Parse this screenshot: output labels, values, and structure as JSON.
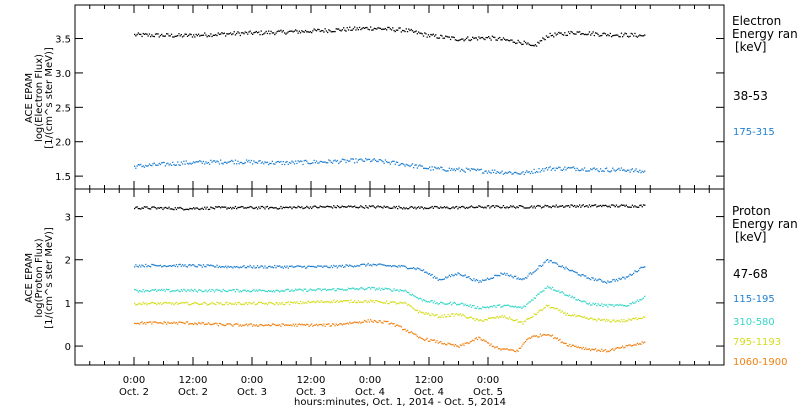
{
  "chart_data": [
    {
      "type": "scatter",
      "ylabel_lines": [
        "ACE EPAM",
        "log(Electron Flux)",
        "[1/(cm^s ster MeV)]"
      ],
      "ylim": [
        1.4,
        3.9
      ],
      "yticks": [
        1.5,
        2.0,
        2.5,
        3.0,
        3.5
      ],
      "ytick_labels": [
        "1.5",
        "2.0",
        "2.5",
        "3.0",
        "3.5"
      ],
      "legend": {
        "title_lines": [
          "Electron",
          "Energy ran",
          "[keV]"
        ]
      },
      "series": [
        {
          "name": "38-53",
          "color": "#000000",
          "points": [
            [
              0,
              3.56
            ],
            [
              10,
              3.55
            ],
            [
              20,
              3.58
            ],
            [
              30,
              3.6
            ],
            [
              40,
              3.63
            ],
            [
              48,
              3.66
            ],
            [
              55,
              3.63
            ],
            [
              60,
              3.55
            ],
            [
              66,
              3.5
            ],
            [
              72,
              3.52
            ],
            [
              79,
              3.45
            ],
            [
              81,
              3.38
            ],
            [
              84,
              3.55
            ],
            [
              90,
              3.6
            ],
            [
              95,
              3.57
            ],
            [
              100,
              3.56
            ],
            [
              104,
              3.55
            ]
          ]
        },
        {
          "name": "175-315",
          "color": "#1f7fd0",
          "points": [
            [
              0,
              1.65
            ],
            [
              10,
              1.7
            ],
            [
              20,
              1.72
            ],
            [
              30,
              1.7
            ],
            [
              40,
              1.72
            ],
            [
              48,
              1.74
            ],
            [
              55,
              1.68
            ],
            [
              60,
              1.62
            ],
            [
              66,
              1.6
            ],
            [
              72,
              1.58
            ],
            [
              79,
              1.55
            ],
            [
              84,
              1.62
            ],
            [
              90,
              1.62
            ],
            [
              95,
              1.6
            ],
            [
              100,
              1.6
            ],
            [
              104,
              1.57
            ]
          ]
        }
      ]
    },
    {
      "type": "scatter",
      "ylabel_lines": [
        "ACE EPAM",
        "log(Proton Flux)",
        "[1/(cm^s ster MeV)]"
      ],
      "ylim": [
        -0.3,
        3.5
      ],
      "yticks": [
        0,
        1,
        2,
        3
      ],
      "ytick_labels": [
        "0",
        "1",
        "2",
        "3"
      ],
      "legend": {
        "title_lines": [
          "Proton",
          "Energy ran",
          "[keV]"
        ]
      },
      "series": [
        {
          "name": "47-68",
          "color": "#000000",
          "points": [
            [
              0,
              3.22
            ],
            [
              10,
              3.2
            ],
            [
              20,
              3.22
            ],
            [
              30,
              3.22
            ],
            [
              40,
              3.24
            ],
            [
              48,
              3.24
            ],
            [
              56,
              3.22
            ],
            [
              64,
              3.22
            ],
            [
              72,
              3.24
            ],
            [
              80,
              3.24
            ],
            [
              88,
              3.26
            ],
            [
              96,
              3.26
            ],
            [
              104,
              3.26
            ]
          ]
        },
        {
          "name": "115-195",
          "color": "#1f7fd0",
          "points": [
            [
              0,
              1.88
            ],
            [
              10,
              1.88
            ],
            [
              20,
              1.85
            ],
            [
              30,
              1.85
            ],
            [
              40,
              1.85
            ],
            [
              48,
              1.9
            ],
            [
              55,
              1.85
            ],
            [
              58,
              1.8
            ],
            [
              62,
              1.55
            ],
            [
              66,
              1.7
            ],
            [
              70,
              1.5
            ],
            [
              75,
              1.7
            ],
            [
              79,
              1.55
            ],
            [
              84,
              2.0
            ],
            [
              88,
              1.8
            ],
            [
              92,
              1.6
            ],
            [
              96,
              1.5
            ],
            [
              100,
              1.6
            ],
            [
              104,
              1.9
            ]
          ]
        },
        {
          "name": "310-580",
          "color": "#35d6c8",
          "points": [
            [
              0,
              1.3
            ],
            [
              10,
              1.3
            ],
            [
              20,
              1.3
            ],
            [
              30,
              1.3
            ],
            [
              40,
              1.32
            ],
            [
              48,
              1.35
            ],
            [
              55,
              1.3
            ],
            [
              58,
              1.1
            ],
            [
              62,
              1.0
            ],
            [
              66,
              1.0
            ],
            [
              70,
              0.9
            ],
            [
              75,
              0.95
            ],
            [
              79,
              0.9
            ],
            [
              84,
              1.4
            ],
            [
              88,
              1.2
            ],
            [
              92,
              1.0
            ],
            [
              96,
              0.95
            ],
            [
              100,
              0.95
            ],
            [
              104,
              1.15
            ]
          ]
        },
        {
          "name": "795-1193",
          "color": "#d4dc1a",
          "points": [
            [
              0,
              1.0
            ],
            [
              10,
              1.0
            ],
            [
              20,
              1.0
            ],
            [
              30,
              1.0
            ],
            [
              40,
              1.05
            ],
            [
              48,
              1.05
            ],
            [
              55,
              1.0
            ],
            [
              58,
              0.8
            ],
            [
              62,
              0.7
            ],
            [
              66,
              0.75
            ],
            [
              70,
              0.6
            ],
            [
              75,
              0.7
            ],
            [
              79,
              0.55
            ],
            [
              84,
              0.95
            ],
            [
              88,
              0.75
            ],
            [
              92,
              0.65
            ],
            [
              96,
              0.6
            ],
            [
              100,
              0.6
            ],
            [
              104,
              0.7
            ]
          ]
        },
        {
          "name": "1060-1900",
          "color": "#f08010",
          "points": [
            [
              0,
              0.55
            ],
            [
              10,
              0.55
            ],
            [
              20,
              0.5
            ],
            [
              30,
              0.5
            ],
            [
              40,
              0.5
            ],
            [
              48,
              0.6
            ],
            [
              52,
              0.55
            ],
            [
              55,
              0.4
            ],
            [
              58,
              0.2
            ],
            [
              62,
              0.1
            ],
            [
              66,
              0.0
            ],
            [
              70,
              0.2
            ],
            [
              74,
              -0.05
            ],
            [
              78,
              -0.1
            ],
            [
              80,
              0.2
            ],
            [
              84,
              0.3
            ],
            [
              88,
              0.05
            ],
            [
              92,
              -0.05
            ],
            [
              96,
              -0.1
            ],
            [
              100,
              0.0
            ],
            [
              104,
              0.1
            ]
          ]
        }
      ]
    }
  ],
  "x_axis": {
    "xlim_hours": [
      -12,
      120
    ],
    "ticks": [
      {
        "hour": 0,
        "time": "0:00",
        "date": "Oct. 2"
      },
      {
        "hour": 12,
        "time": "12:00",
        "date": "Oct. 2"
      },
      {
        "hour": 24,
        "time": "0:00",
        "date": "Oct. 3"
      },
      {
        "hour": 36,
        "time": "12:00",
        "date": "Oct. 3"
      },
      {
        "hour": 48,
        "time": "0:00",
        "date": "Oct. 4"
      },
      {
        "hour": 60,
        "time": "12:00",
        "date": "Oct. 4"
      },
      {
        "hour": 72,
        "time": "0:00",
        "date": "Oct. 5"
      }
    ],
    "xlabel": "hours:minutes, Oct.  1, 2014 - Oct.  5, 2014"
  }
}
